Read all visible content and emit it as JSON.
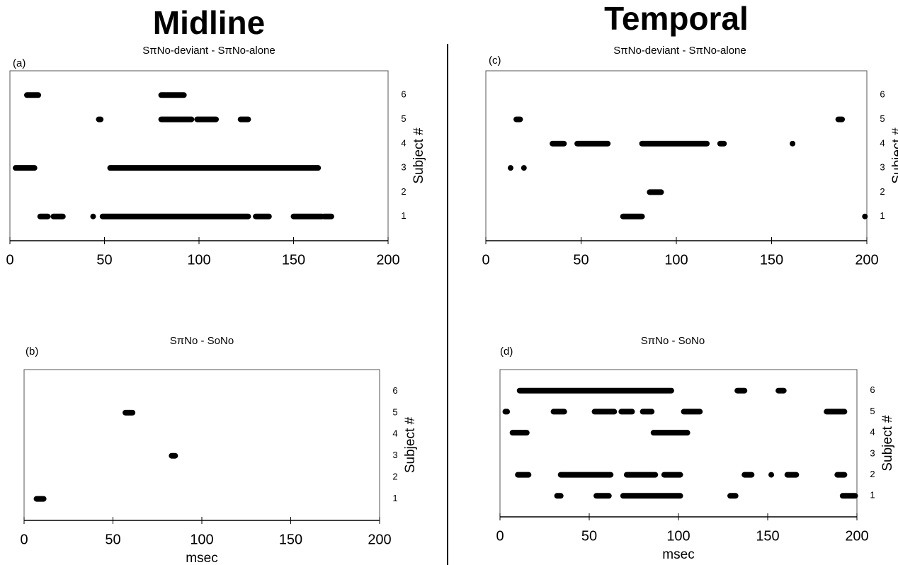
{
  "headers": [
    "Midline",
    "Temporal"
  ],
  "chart_data": [
    {
      "type": "timeline",
      "panel": "(a)",
      "subtitle": "SπNo-deviant - SπNo-alone",
      "ylabel": "Subject #",
      "xlim": [
        0,
        200
      ],
      "xticks": [
        0,
        50,
        100,
        150,
        200
      ],
      "ylim": [
        0,
        7
      ],
      "yticks": [
        1,
        2,
        3,
        4,
        5,
        6
      ],
      "color": "#000000",
      "segments": [
        {
          "subject": 6,
          "start": 9,
          "end": 15
        },
        {
          "subject": 6,
          "start": 80,
          "end": 92
        },
        {
          "subject": 5,
          "start": 47,
          "end": 48
        },
        {
          "subject": 5,
          "start": 80,
          "end": 96
        },
        {
          "subject": 5,
          "start": 99,
          "end": 109
        },
        {
          "subject": 5,
          "start": 122,
          "end": 126
        },
        {
          "subject": 3,
          "start": 3,
          "end": 13
        },
        {
          "subject": 3,
          "start": 53,
          "end": 163
        },
        {
          "subject": 1,
          "start": 16,
          "end": 20
        },
        {
          "subject": 1,
          "start": 23,
          "end": 28
        },
        {
          "subject": 1,
          "start": 44,
          "end": 44
        },
        {
          "subject": 1,
          "start": 49,
          "end": 126
        },
        {
          "subject": 1,
          "start": 130,
          "end": 137
        },
        {
          "subject": 1,
          "start": 150,
          "end": 165
        },
        {
          "subject": 1,
          "start": 166,
          "end": 170
        }
      ]
    },
    {
      "type": "timeline",
      "panel": "(b)",
      "subtitle": "SπNo - SoNo",
      "ylabel": "Subject #",
      "xlabel": "msec",
      "xlim": [
        0,
        200
      ],
      "xticks": [
        0,
        50,
        100,
        150,
        200
      ],
      "ylim": [
        0,
        7
      ],
      "yticks": [
        1,
        2,
        3,
        4,
        5,
        6
      ],
      "color": "#000000",
      "segments": [
        {
          "subject": 5,
          "start": 57,
          "end": 61
        },
        {
          "subject": 3,
          "start": 83,
          "end": 85
        },
        {
          "subject": 1,
          "start": 7,
          "end": 11
        }
      ]
    },
    {
      "type": "timeline",
      "panel": "(c)",
      "subtitle": "SπNo-deviant - SπNo-alone",
      "ylabel": "Subject #",
      "xlim": [
        0,
        200
      ],
      "xticks": [
        0,
        50,
        100,
        150,
        200
      ],
      "ylim": [
        0,
        7
      ],
      "yticks": [
        1,
        2,
        3,
        4,
        5,
        6
      ],
      "color": "#000000",
      "segments": [
        {
          "subject": 5,
          "start": 16,
          "end": 18
        },
        {
          "subject": 5,
          "start": 185,
          "end": 187
        },
        {
          "subject": 4,
          "start": 35,
          "end": 41
        },
        {
          "subject": 4,
          "start": 48,
          "end": 64
        },
        {
          "subject": 4,
          "start": 82,
          "end": 116
        },
        {
          "subject": 4,
          "start": 123,
          "end": 125
        },
        {
          "subject": 4,
          "start": 161,
          "end": 161
        },
        {
          "subject": 3,
          "start": 13,
          "end": 13
        },
        {
          "subject": 3,
          "start": 20,
          "end": 20
        },
        {
          "subject": 2,
          "start": 86,
          "end": 92
        },
        {
          "subject": 1,
          "start": 72,
          "end": 82
        },
        {
          "subject": 1,
          "start": 199,
          "end": 199
        }
      ]
    },
    {
      "type": "timeline",
      "panel": "(d)",
      "subtitle": "SπNo - SoNo",
      "ylabel": "Subject #",
      "xlabel": "msec",
      "xlim": [
        0,
        200
      ],
      "xticks": [
        0,
        50,
        100,
        150,
        200
      ],
      "ylim": [
        0,
        7
      ],
      "yticks": [
        1,
        2,
        3,
        4,
        5,
        6
      ],
      "color": "#000000",
      "segments": [
        {
          "subject": 6,
          "start": 11,
          "end": 96
        },
        {
          "subject": 6,
          "start": 133,
          "end": 137
        },
        {
          "subject": 6,
          "start": 156,
          "end": 159
        },
        {
          "subject": 5,
          "start": 3,
          "end": 4
        },
        {
          "subject": 5,
          "start": 30,
          "end": 36
        },
        {
          "subject": 5,
          "start": 53,
          "end": 64
        },
        {
          "subject": 5,
          "start": 68,
          "end": 74
        },
        {
          "subject": 5,
          "start": 80,
          "end": 85
        },
        {
          "subject": 5,
          "start": 103,
          "end": 112
        },
        {
          "subject": 5,
          "start": 183,
          "end": 193
        },
        {
          "subject": 4,
          "start": 7,
          "end": 15
        },
        {
          "subject": 4,
          "start": 86,
          "end": 105
        },
        {
          "subject": 2,
          "start": 10,
          "end": 16
        },
        {
          "subject": 2,
          "start": 34,
          "end": 62
        },
        {
          "subject": 2,
          "start": 71,
          "end": 87
        },
        {
          "subject": 2,
          "start": 92,
          "end": 101
        },
        {
          "subject": 2,
          "start": 137,
          "end": 141
        },
        {
          "subject": 2,
          "start": 152,
          "end": 152
        },
        {
          "subject": 2,
          "start": 161,
          "end": 166
        },
        {
          "subject": 2,
          "start": 189,
          "end": 193
        },
        {
          "subject": 1,
          "start": 32,
          "end": 34
        },
        {
          "subject": 1,
          "start": 54,
          "end": 61
        },
        {
          "subject": 1,
          "start": 69,
          "end": 101
        },
        {
          "subject": 1,
          "start": 129,
          "end": 132
        },
        {
          "subject": 1,
          "start": 192,
          "end": 199
        }
      ]
    }
  ]
}
